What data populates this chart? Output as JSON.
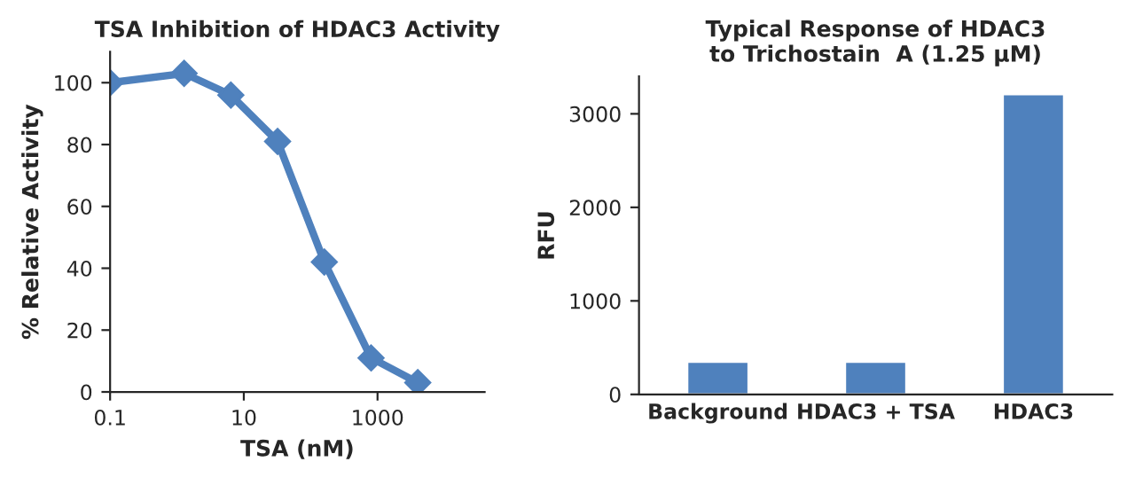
{
  "chart_data": [
    {
      "type": "line",
      "title": "TSA Inhibition of HDAC3 Activity",
      "xlabel": "TSA (nM)",
      "ylabel": "% Relative Activity",
      "log": "x",
      "x": [
        0.1,
        1.28,
        6.4,
        32,
        160,
        800,
        4000
      ],
      "series": [
        {
          "color": "#4f81bd",
          "values": [
            100,
            103,
            96,
            81,
            42,
            11,
            3
          ]
        }
      ],
      "xlim": [
        0.1,
        40000
      ],
      "xticks": [
        0.1,
        10,
        1000
      ],
      "ylim": [
        0,
        110
      ],
      "yticks": [
        0,
        20,
        40,
        60,
        80,
        100
      ],
      "marker": "diamond",
      "line_style": "solid",
      "grid": false,
      "legend": false
    },
    {
      "type": "bar",
      "title": "Typical Response of HDAC3\nto Trichostain  A (1.25 µM)",
      "ylabel": "RFU",
      "categories": [
        "Background",
        "HDAC3 + TSA",
        "HDAC3"
      ],
      "series": [
        {
          "color": "#4f81bd",
          "values": [
            350,
            350,
            3210
          ]
        }
      ],
      "ylim": [
        0,
        3400
      ],
      "yticks": [
        0,
        1000,
        2000,
        3000
      ],
      "grid": false,
      "legend": false
    }
  ]
}
